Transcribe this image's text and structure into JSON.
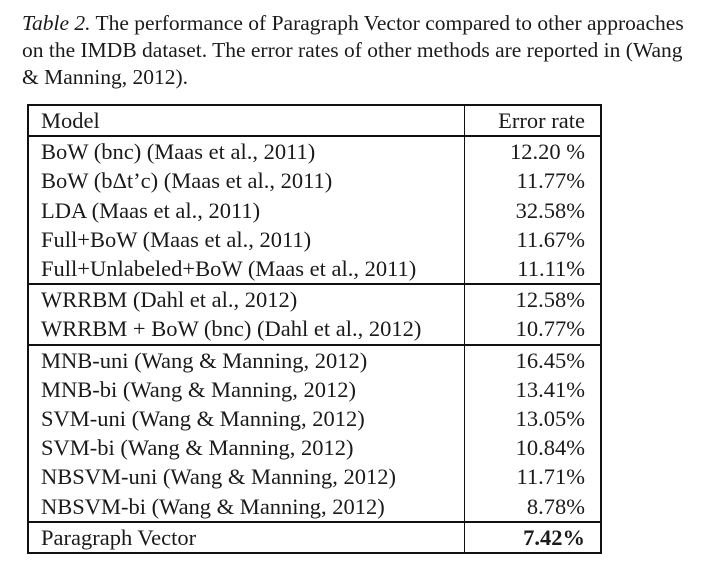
{
  "caption": {
    "label": "Table 2.",
    "text": " The performance of Paragraph Vector compared to other approaches on the IMDB dataset. The error rates of other methods are reported in (Wang & Manning, 2012)."
  },
  "table": {
    "headers": {
      "model": "Model",
      "error": "Error rate"
    },
    "groups": [
      {
        "rows": [
          {
            "model": "BoW (bnc) (Maas et al., 2011)",
            "error": "12.20 %"
          },
          {
            "model": "BoW (bΔt’c) (Maas et al., 2011)",
            "error": "11.77%"
          },
          {
            "model": "LDA (Maas et al., 2011)",
            "error": "32.58%"
          },
          {
            "model": "Full+BoW (Maas et al., 2011)",
            "error": "11.67%"
          },
          {
            "model": "Full+Unlabeled+BoW (Maas et al., 2011)",
            "error": "11.11%"
          }
        ]
      },
      {
        "rows": [
          {
            "model": "WRRBM (Dahl et al., 2012)",
            "error": "12.58%"
          },
          {
            "model": "WRRBM + BoW (bnc) (Dahl et al., 2012)",
            "error": "10.77%"
          }
        ]
      },
      {
        "rows": [
          {
            "model": "MNB-uni (Wang & Manning, 2012)",
            "error": "16.45%"
          },
          {
            "model": "MNB-bi (Wang & Manning, 2012)",
            "error": "13.41%"
          },
          {
            "model": "SVM-uni (Wang & Manning, 2012)",
            "error": "13.05%"
          },
          {
            "model": "SVM-bi (Wang & Manning, 2012)",
            "error": "10.84%"
          },
          {
            "model": "NBSVM-uni (Wang & Manning, 2012)",
            "error": "11.71%"
          },
          {
            "model": "NBSVM-bi (Wang & Manning, 2012)",
            "error": "8.78%"
          }
        ]
      },
      {
        "rows": [
          {
            "model": "Paragraph Vector",
            "error": "7.42%",
            "bold": true
          }
        ]
      }
    ]
  }
}
